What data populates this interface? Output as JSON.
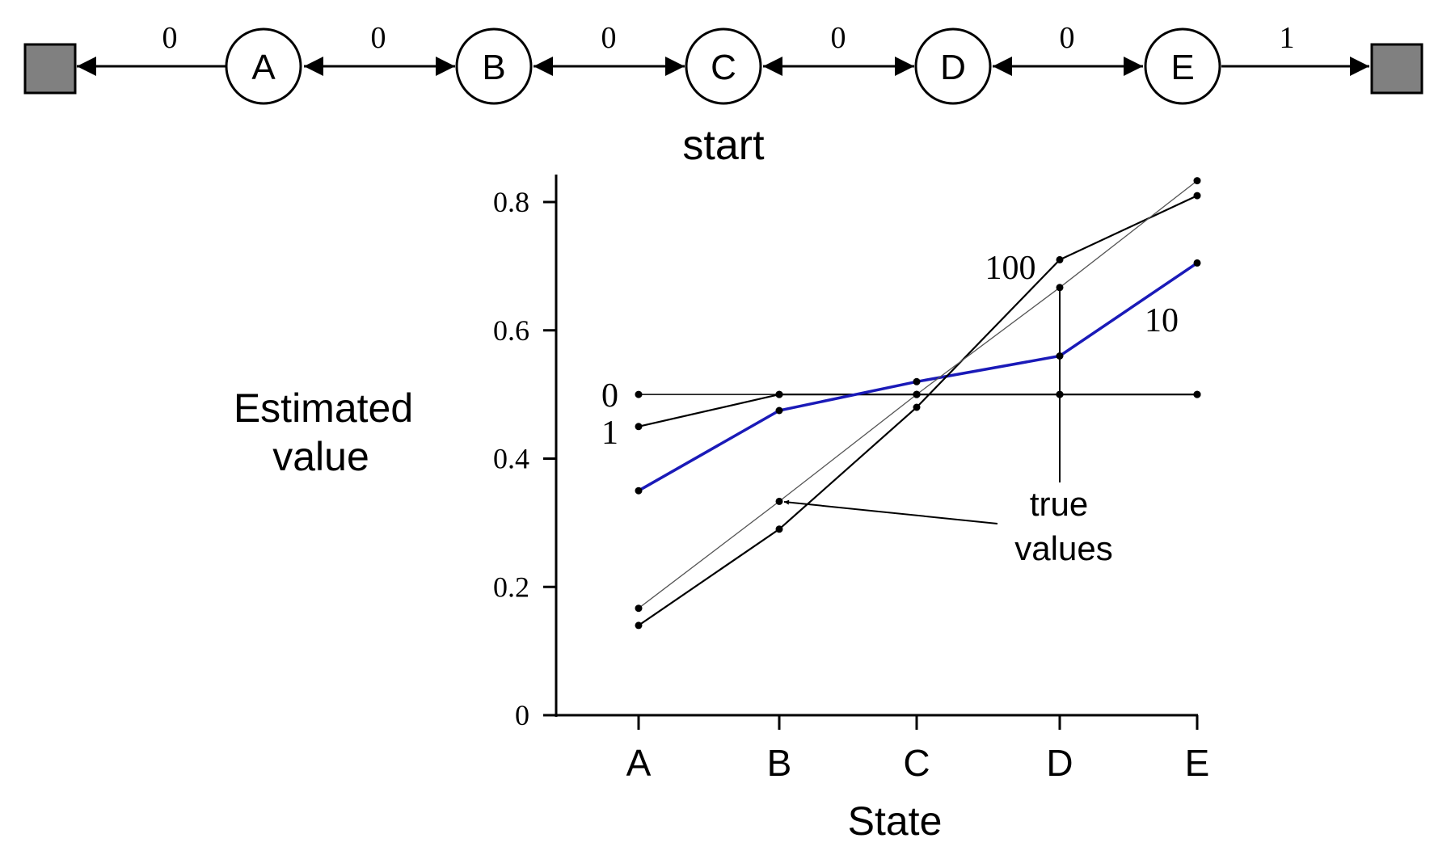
{
  "diagram": {
    "states": [
      "A",
      "B",
      "C",
      "D",
      "E"
    ],
    "rewards": [
      "0",
      "0",
      "0",
      "0",
      "0",
      "1"
    ],
    "start_label": "start"
  },
  "chart_data": {
    "type": "line",
    "title": "",
    "xlabel": "State",
    "ylabel_lines": [
      "Estimated",
      "value"
    ],
    "categories": [
      "A",
      "B",
      "C",
      "D",
      "E"
    ],
    "ylim": [
      0,
      0.8
    ],
    "yticks": [
      "0",
      "0.2",
      "0.4",
      "0.6",
      "0.8"
    ],
    "grid": false,
    "series": [
      {
        "name": "0",
        "values": [
          0.5,
          0.5,
          0.5,
          0.5,
          0.5
        ],
        "color": "#000000"
      },
      {
        "name": "1",
        "values": [
          0.45,
          0.5,
          0.5,
          0.5,
          0.5
        ],
        "color": "#000000"
      },
      {
        "name": "10",
        "values": [
          0.35,
          0.475,
          0.52,
          0.56,
          0.705
        ],
        "color": "#1a1ab8"
      },
      {
        "name": "100",
        "values": [
          0.14,
          0.29,
          0.48,
          0.71,
          0.81
        ],
        "color": "#000000"
      },
      {
        "name": "",
        "values": [
          0.1667,
          0.3333,
          0.5,
          0.6667,
          0.8333
        ],
        "color": "#555555"
      }
    ],
    "annotations": [
      "true",
      "values"
    ]
  }
}
